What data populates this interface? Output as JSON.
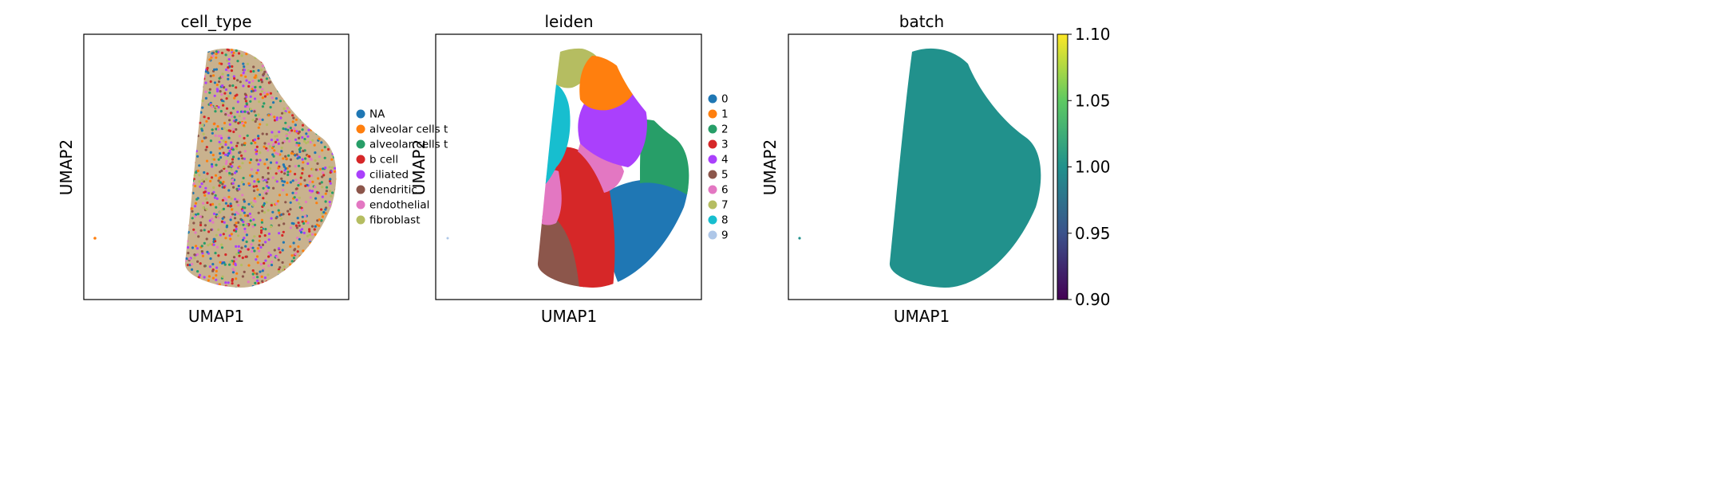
{
  "chart_data": [
    {
      "type": "scatter",
      "title": "cell_type",
      "xlabel": "UMAP1",
      "ylabel": "UMAP2",
      "legend_position": "right",
      "legend": [
        {
          "label": "NA",
          "color": "#1f77b4"
        },
        {
          "label": "alveolar cells t",
          "color": "#ff7f0e"
        },
        {
          "label": "alveolar cells t",
          "color": "#279e68"
        },
        {
          "label": "b cell",
          "color": "#d62728"
        },
        {
          "label": "ciliated",
          "color": "#aa40fc"
        },
        {
          "label": "dendritic",
          "color": "#8c564b"
        },
        {
          "label": "endothelial",
          "color": "#e377c2"
        },
        {
          "label": "fibroblast",
          "color": "#b5bd61"
        }
      ]
    },
    {
      "type": "scatter",
      "title": "leiden",
      "xlabel": "UMAP1",
      "ylabel": "UMAP2",
      "legend_position": "right",
      "legend": [
        {
          "label": "0",
          "color": "#1f77b4"
        },
        {
          "label": "1",
          "color": "#ff7f0e"
        },
        {
          "label": "2",
          "color": "#279e68"
        },
        {
          "label": "3",
          "color": "#d62728"
        },
        {
          "label": "4",
          "color": "#aa40fc"
        },
        {
          "label": "5",
          "color": "#8c564b"
        },
        {
          "label": "6",
          "color": "#e377c2"
        },
        {
          "label": "7",
          "color": "#b5bd61"
        },
        {
          "label": "8",
          "color": "#17becf"
        },
        {
          "label": "9",
          "color": "#aec7e8"
        }
      ]
    },
    {
      "type": "scatter",
      "title": "batch",
      "xlabel": "UMAP1",
      "ylabel": "UMAP2",
      "point_color": "#21918c",
      "colorbar": {
        "colormap": "viridis",
        "range": [
          0.9,
          1.1
        ],
        "ticks": [
          "1.10",
          "1.05",
          "1.00",
          "0.95",
          "0.90"
        ]
      }
    }
  ]
}
